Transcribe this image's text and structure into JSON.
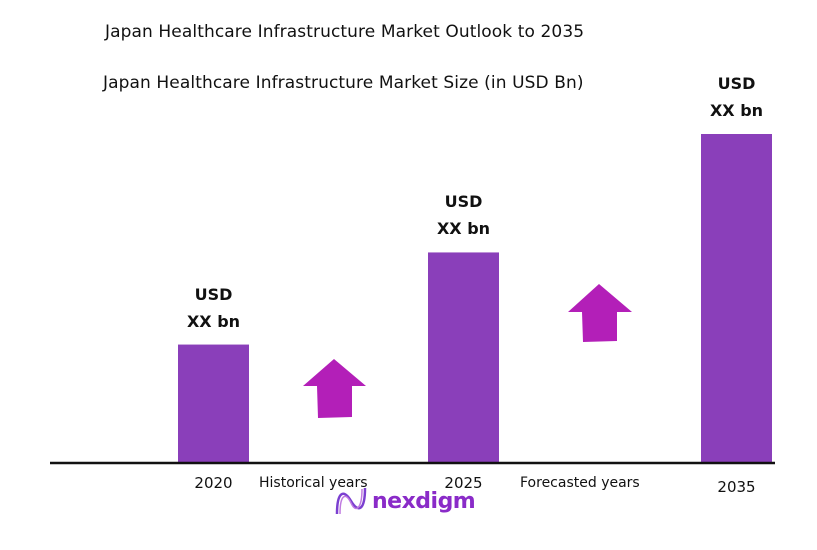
{
  "title": "Japan Healthcare Infrastructure Market Outlook to 2035",
  "subtitle": "Japan Healthcare Infrastructure Market Size (in USD Bn)",
  "chart_data": {
    "type": "bar",
    "title": "Japan Healthcare Infrastructure Market Size (in USD Bn)",
    "categories": [
      "2020",
      "2025",
      "2035"
    ],
    "values": [
      36,
      64,
      100
    ],
    "value_note_relative": true,
    "data_labels": [
      [
        "USD",
        "XX bn"
      ],
      [
        "USD",
        "XX bn"
      ],
      [
        "USD",
        "XX bn"
      ]
    ],
    "period_labels": [
      "Historical years",
      "Forecasted years"
    ],
    "grid": false,
    "bar_color": "#8a3fba",
    "arrow_color": "#b31fb8"
  },
  "logo": {
    "text": "nexdigm"
  }
}
